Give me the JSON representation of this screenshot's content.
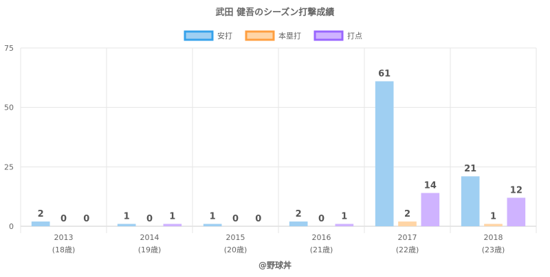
{
  "chart_data": {
    "type": "bar",
    "title": "武田 健吾のシーズン打撃成績",
    "categories": [
      "2013",
      "2014",
      "2015",
      "2016",
      "2017",
      "2018"
    ],
    "category_sublabels": [
      "(18歳)",
      "(19歳)",
      "(20歳)",
      "(21歳)",
      "(22歳)",
      "(23歳)"
    ],
    "series": [
      {
        "name": "安打",
        "values": [
          2,
          1,
          1,
          2,
          61,
          21
        ],
        "fill": "#9fcff2",
        "border": "#36a2eb"
      },
      {
        "name": "本塁打",
        "values": [
          0,
          0,
          0,
          0,
          2,
          1
        ],
        "fill": "#ffd5a6",
        "border": "#ff9f40"
      },
      {
        "name": "打点",
        "values": [
          0,
          1,
          0,
          1,
          14,
          12
        ],
        "fill": "#cfb3ff",
        "border": "#9966ff"
      }
    ],
    "ylim": [
      0,
      75
    ],
    "yticks": [
      0,
      25,
      50,
      75
    ],
    "xlabel": "",
    "ylabel": "",
    "legend_position": "top",
    "grid": true,
    "footer": "@野球丼",
    "colors": {
      "title": "#666666",
      "tick": "#666666",
      "data_label": "#555555",
      "grid": "#e5e5e5",
      "axis": "#cccccc"
    }
  }
}
